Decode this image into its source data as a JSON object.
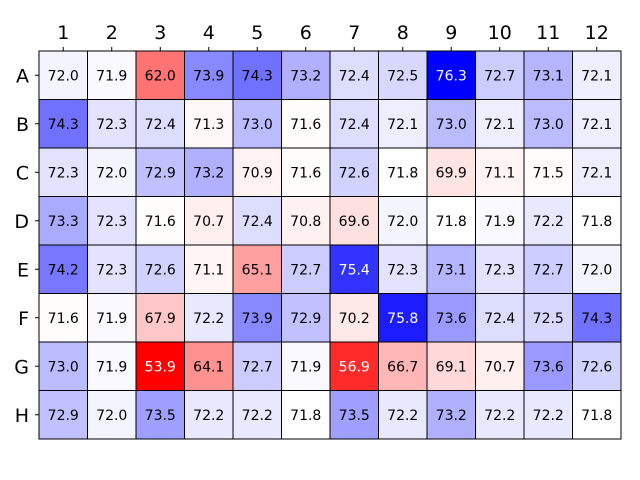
{
  "chart_data": {
    "type": "heatmap",
    "columns": [
      "1",
      "2",
      "3",
      "4",
      "5",
      "6",
      "7",
      "8",
      "9",
      "10",
      "11",
      "12"
    ],
    "rows": [
      "A",
      "B",
      "C",
      "D",
      "E",
      "F",
      "G",
      "H"
    ],
    "values": [
      [
        72.0,
        71.9,
        62.0,
        73.9,
        74.3,
        73.2,
        72.4,
        72.5,
        76.3,
        72.7,
        73.1,
        72.1
      ],
      [
        74.3,
        72.3,
        72.4,
        71.3,
        73.0,
        71.6,
        72.4,
        72.1,
        73.0,
        72.1,
        73.0,
        72.1
      ],
      [
        72.3,
        72.0,
        72.9,
        73.2,
        70.9,
        71.6,
        72.6,
        71.8,
        69.9,
        71.1,
        71.5,
        72.1
      ],
      [
        73.3,
        72.3,
        71.6,
        70.7,
        72.4,
        70.8,
        69.6,
        72.0,
        71.8,
        71.9,
        72.2,
        71.8
      ],
      [
        74.2,
        72.3,
        72.6,
        71.1,
        65.1,
        72.7,
        75.4,
        72.3,
        73.1,
        72.3,
        72.7,
        72.0
      ],
      [
        71.6,
        71.9,
        67.9,
        72.2,
        73.9,
        72.9,
        70.2,
        75.8,
        73.6,
        72.4,
        72.5,
        74.3
      ],
      [
        73.0,
        71.9,
        53.9,
        64.1,
        72.7,
        71.9,
        56.9,
        66.7,
        69.1,
        70.7,
        73.6,
        72.6
      ],
      [
        72.9,
        72.0,
        73.5,
        72.2,
        72.2,
        71.8,
        73.5,
        72.2,
        73.2,
        72.2,
        72.2,
        71.8
      ]
    ],
    "colormap": {
      "low": "#ff0000",
      "mid": "#ffffff",
      "high": "#0000ff",
      "center": 71.8
    },
    "grid": true,
    "legend": "none"
  }
}
